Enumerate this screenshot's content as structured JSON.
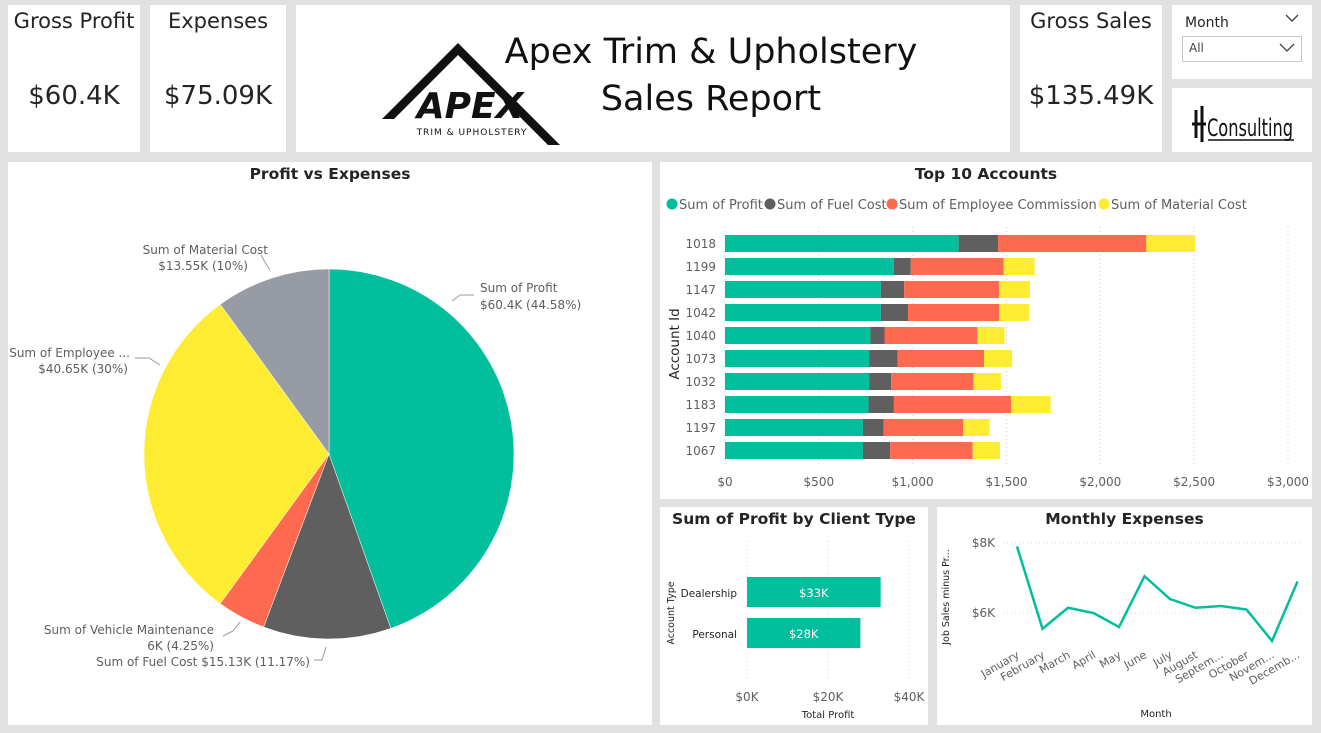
{
  "kpis": {
    "gross_profit": {
      "label": "Gross Profit",
      "value": "$60.4K"
    },
    "expenses": {
      "label": "Expenses",
      "value": "$75.09K"
    },
    "gross_sales": {
      "label": "Gross Sales",
      "value": "$135.49K"
    }
  },
  "header": {
    "title_line1": "Apex Trim & Upholstery",
    "title_line2": "Sales Report",
    "logo_text": "APEX",
    "logo_subtext": "TRIM & UPHOLSTERY"
  },
  "slicer": {
    "label": "Month",
    "selected": "All"
  },
  "consulting_logo": {
    "text": "Consulting"
  },
  "colors": {
    "profit": "#01BE9C",
    "fuel": "#5F5F5F",
    "commission": "#FD6A4F",
    "material": "#FEEC32",
    "vehicle": "#FD6A4F",
    "material_pie": "#979BA3",
    "line": "#01BE9C"
  },
  "pie_chart": {
    "title": "Profit vs Expenses",
    "labels": {
      "material": {
        "name": "Sum of Material Cost",
        "value": "$13.55K (10%)"
      },
      "employee": {
        "name": "Sum of Employee ...",
        "value": "$40.65K (30%)"
      },
      "vehicle": {
        "name": "Sum of Vehicle Maintenance",
        "value": "6K (4.25%)"
      },
      "fuel": {
        "text": "Sum of Fuel Cost $15.13K (11.17%)"
      },
      "profit": {
        "name": "Sum of Profit",
        "value": "$60.4K (44.58%)"
      }
    }
  },
  "bar_chart": {
    "title": "Top 10 Accounts",
    "legend": [
      "Sum of Profit",
      "Sum of Fuel Cost",
      "Sum of  Employee Commission",
      "Sum of  Material Cost"
    ],
    "ylabel": "Account Id",
    "xticks": [
      "$0",
      "$500",
      "$1,000",
      "$1,500",
      "$2,000",
      "$2,500",
      "$3,000"
    ]
  },
  "client_chart": {
    "title": "Sum of Profit by Client Type",
    "ylabel": "Account Type",
    "xlabel": "Total Profit",
    "xticks": [
      "$0K",
      "$20K",
      "$40K"
    ]
  },
  "line_chart": {
    "title": "Monthly Expenses",
    "ylabel": "Job Sales minus Pr...",
    "xlabel": "Month",
    "yticks": [
      "$8K",
      "$6K"
    ]
  },
  "chart_data": [
    {
      "type": "pie",
      "title": "Profit vs Expenses",
      "series": [
        {
          "name": "Sum of Profit",
          "value": 60.4,
          "percent": 44.58
        },
        {
          "name": "Sum of Fuel Cost",
          "value": 15.13,
          "percent": 11.17
        },
        {
          "name": "Sum of Vehicle Maintenance",
          "value": 6,
          "percent": 4.25
        },
        {
          "name": "Sum of Employee Commission",
          "value": 40.65,
          "percent": 30
        },
        {
          "name": "Sum of Material Cost",
          "value": 13.55,
          "percent": 10
        }
      ]
    },
    {
      "type": "bar",
      "title": "Top 10 Accounts",
      "orientation": "horizontal",
      "stacked": true,
      "categories": [
        "1018",
        "1199",
        "1147",
        "1042",
        "1040",
        "1073",
        "1032",
        "1183",
        "1197",
        "1067"
      ],
      "series": [
        {
          "name": "Sum of Profit",
          "values": [
            1245,
            900,
            830,
            830,
            775,
            770,
            770,
            765,
            735,
            735
          ]
        },
        {
          "name": "Sum of Fuel Cost",
          "values": [
            210,
            90,
            125,
            145,
            75,
            150,
            115,
            135,
            110,
            145
          ]
        },
        {
          "name": "Sum of  Employee Commission",
          "values": [
            790,
            495,
            505,
            485,
            495,
            460,
            440,
            625,
            425,
            440
          ]
        },
        {
          "name": "Sum of  Material Cost",
          "values": [
            260,
            165,
            165,
            160,
            145,
            150,
            145,
            210,
            140,
            145
          ]
        }
      ],
      "xlabel": "",
      "ylabel": "Account Id",
      "xlim": [
        0,
        3000
      ],
      "grid": true,
      "legend": "top-left"
    },
    {
      "type": "bar",
      "title": "Sum of Profit by Client Type",
      "orientation": "horizontal",
      "categories": [
        "Dealership",
        "Personal"
      ],
      "values": [
        33,
        28
      ],
      "labels": [
        "$33K",
        "$28K"
      ],
      "xlabel": "Total Profit",
      "ylabel": "Account Type",
      "xlim": [
        0,
        40
      ]
    },
    {
      "type": "line",
      "title": "Monthly Expenses",
      "x": [
        "January",
        "February",
        "March",
        "April",
        "May",
        "June",
        "July",
        "August",
        "Septem...",
        "October",
        "Novem...",
        "Decemb..."
      ],
      "values": [
        7.9,
        5.55,
        6.15,
        6.0,
        5.6,
        7.05,
        6.4,
        6.15,
        6.2,
        6.1,
        5.2,
        6.9
      ],
      "xlabel": "Month",
      "ylabel": "Job Sales minus Pr...",
      "ylim": [
        4.7,
        8
      ]
    }
  ]
}
